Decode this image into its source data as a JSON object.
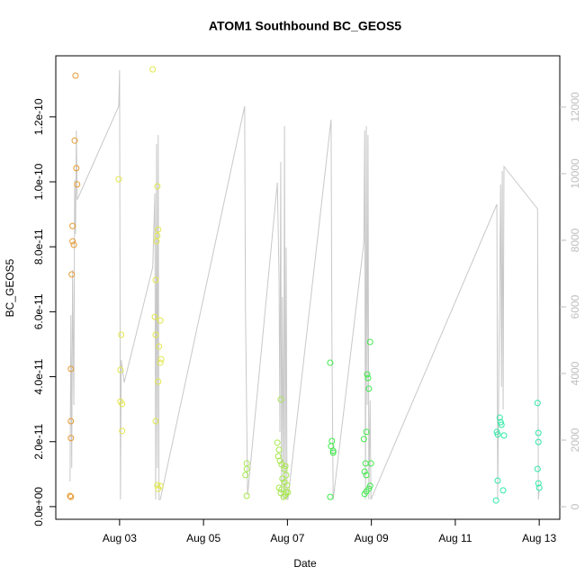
{
  "chart_data": {
    "type": "scatter",
    "title": "ATOM1 Southbound BC_GEOS5",
    "x_label": "Date",
    "y_label": "BC_GEOS5",
    "xlim": [
      1.48,
      13.49
    ],
    "xticks": [
      {
        "value": 3,
        "label": "Aug 03"
      },
      {
        "value": 5,
        "label": "Aug 05"
      },
      {
        "value": 7,
        "label": "Aug 07"
      },
      {
        "value": 9,
        "label": "Aug 09"
      },
      {
        "value": 11,
        "label": "Aug 11"
      },
      {
        "value": 13,
        "label": "Aug 13"
      }
    ],
    "ylim": [
      -3.9e-12,
      1.388e-10
    ],
    "yticks": [
      {
        "value": 0,
        "label": "0.0e+00"
      },
      {
        "value": 2e-11,
        "label": "2.0e-11"
      },
      {
        "value": 4e-11,
        "label": "4.0e-11"
      },
      {
        "value": 6e-11,
        "label": "6.0e-11"
      },
      {
        "value": 8e-11,
        "label": "8.0e-11"
      },
      {
        "value": 1e-10,
        "label": "1.0e-10"
      },
      {
        "value": 1.2e-10,
        "label": "1.2e-10"
      }
    ],
    "y2lim": [
      -378,
      13540
    ],
    "y2ticks": [
      0,
      2000,
      4000,
      6000,
      8000,
      10000,
      12000
    ],
    "series": [
      {
        "type": "line",
        "axis": "y2",
        "color": "#c8c8c8",
        "x": [
          1.82,
          1.84,
          1.86,
          1.88,
          1.91,
          1.93,
          1.95,
          1.97,
          1.99,
          2.98,
          3.0,
          3.02,
          3.04,
          3.11,
          3.79,
          3.84,
          3.86,
          3.88,
          3.9,
          3.92,
          3.94,
          3.97,
          5.98,
          6.0,
          6.05,
          6.76,
          6.8,
          6.82,
          6.84,
          6.86,
          6.88,
          6.91,
          6.93,
          6.95,
          6.97,
          6.99,
          7.01,
          8.04,
          8.06,
          8.09,
          8.82,
          8.84,
          8.86,
          8.88,
          8.9,
          8.92,
          8.94,
          8.97,
          8.99,
          11.99,
          12.01,
          12.08,
          12.1,
          12.12,
          12.14,
          12.16,
          12.96,
          12.98,
          13.0
        ],
        "values": [
          757,
          5757,
          1162,
          7108,
          3054,
          9811,
          8189,
          11297,
          9216,
          12027,
          13108,
          216,
          4405,
          3730,
          7189,
          9405,
          216,
          10892,
          1162,
          11162,
          216,
          216,
          12027,
          5892,
          351,
          9730,
          6838,
          2243,
          10351,
          216,
          6297,
          216,
          11432,
          216,
          7784,
          216,
          216,
          11622,
          5000,
          216,
          7919,
          11297,
          216,
          11432,
          3054,
          11162,
          216,
          3189,
          216,
          9081,
          216,
          9676,
          3595,
          10081,
          2919,
          10216,
          8946,
          216,
          486
        ]
      },
      {
        "color": "#e69a32",
        "x": [
          1.95,
          1.93,
          1.97,
          1.99,
          1.88,
          1.88,
          1.91,
          1.86,
          1.84,
          1.84,
          1.84,
          1.82,
          1.84
        ],
        "values": [
          1.327e-10,
          1.127e-10,
          1.042e-10,
          9.92e-11,
          8.64e-11,
          8.17e-11,
          8.06e-11,
          7.15e-11,
          4.24e-11,
          2.63e-11,
          2.11e-11,
          3.3e-12,
          3e-12
        ]
      },
      {
        "color": "#e2e64a",
        "x": [
          3.79,
          2.98,
          3.04,
          3.02,
          3.02,
          3.06,
          3.06,
          3.9,
          3.92,
          3.9,
          3.88,
          3.86,
          3.84,
          3.97,
          3.86,
          3.94,
          3.99,
          3.97,
          3.92,
          3.86,
          3.9,
          3.97,
          3.92
        ],
        "values": [
          1.346e-10,
          1.008e-10,
          5.29e-11,
          4.21e-11,
          3.24e-11,
          3.16e-11,
          2.33e-11,
          9.86e-11,
          8.53e-11,
          8.34e-11,
          8.17e-11,
          6.98e-11,
          5.84e-11,
          5.73e-11,
          5.29e-11,
          4.93e-11,
          4.54e-11,
          4.43e-11,
          3.85e-11,
          2.63e-11,
          6.6e-12,
          6.4e-12,
          5.5e-12
        ]
      },
      {
        "color": "#a6e84a",
        "x": [
          6.03,
          6.03,
          6.0,
          6.03,
          6.84,
          6.76,
          6.8,
          6.78,
          6.82,
          6.86,
          6.93,
          6.97,
          6.88,
          6.95,
          6.93,
          6.99,
          6.86,
          6.97,
          7.01,
          6.95,
          6.91,
          6.8,
          6.84
        ],
        "values": [
          1.33e-11,
          1.16e-11,
          9.7e-12,
          3.3e-12,
          3.3e-11,
          1.97e-11,
          1.75e-11,
          1.55e-11,
          1.41e-11,
          1.3e-11,
          1.16e-11,
          9.7e-12,
          8.6e-12,
          1.25e-11,
          7.5e-12,
          6.6e-12,
          5.3e-12,
          4.4e-12,
          4.4e-12,
          3.6e-12,
          3e-12,
          5.8e-12,
          4.2e-12
        ]
      },
      {
        "color": "#3ee84a",
        "x": [
          8.02,
          8.02,
          8.06,
          8.04,
          8.09,
          8.09,
          8.82,
          8.88,
          8.86,
          8.84,
          8.88,
          8.9,
          8.92,
          8.94,
          8.97,
          8.99,
          8.88,
          8.84,
          8.94,
          8.97
        ],
        "values": [
          4.43e-11,
          3e-12,
          2.02e-11,
          1.86e-11,
          1.72e-11,
          1.66e-11,
          2.08e-11,
          2.3e-11,
          1.33e-11,
          1.08e-11,
          9.7e-12,
          4.07e-11,
          3.96e-11,
          3.63e-11,
          5.07e-11,
          1.33e-11,
          4.7e-12,
          3.9e-12,
          5.5e-12,
          6.4e-12
        ]
      },
      {
        "color": "#2ee8a6",
        "x": [
          11.97,
          12.01,
          11.99,
          12.01,
          12.06,
          12.08,
          12.1,
          12.14,
          12.16,
          12.96,
          12.98,
          12.98,
          12.96,
          12.98,
          13.0
        ],
        "values": [
          1.9e-12,
          8e-12,
          2.3e-11,
          2.22e-11,
          2.74e-11,
          2.6e-11,
          2.52e-11,
          5e-12,
          2.19e-11,
          3.19e-11,
          2.27e-11,
          1.99e-11,
          1.16e-11,
          7.2e-12,
          5.8e-12
        ]
      }
    ]
  }
}
